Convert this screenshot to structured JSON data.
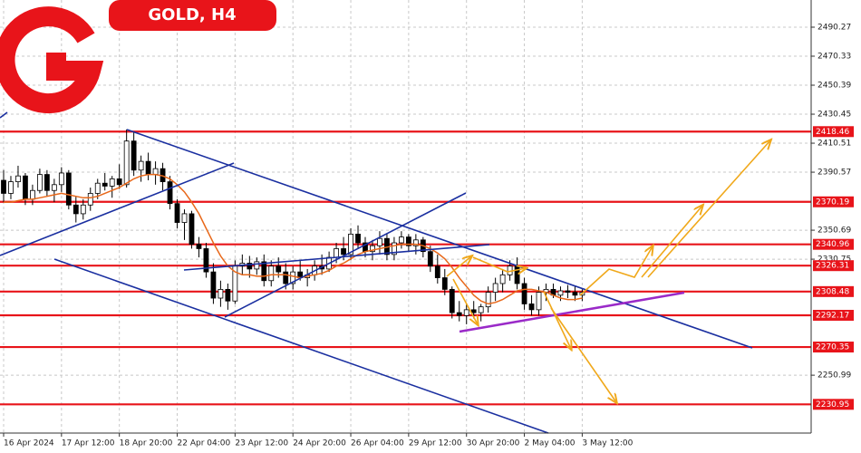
{
  "chart_data": {
    "type": "candlestick",
    "title": "GOLD, H4",
    "categories": [
      "16 Apr 2024",
      null,
      null,
      null,
      null,
      null,
      null,
      null,
      "17 Apr 12:00",
      null,
      null,
      null,
      null,
      null,
      null,
      null,
      "18 Apr 20:00",
      null,
      null,
      null,
      null,
      null,
      null,
      null,
      "22 Apr 04:00",
      null,
      null,
      null,
      null,
      null,
      null,
      null,
      "23 Apr 12:00",
      null,
      null,
      null,
      null,
      null,
      null,
      null,
      "24 Apr 20:00",
      null,
      null,
      null,
      null,
      null,
      null,
      null,
      "26 Apr 04:00",
      null,
      null,
      null,
      null,
      null,
      null,
      null,
      "29 Apr 12:00",
      null,
      null,
      null,
      null,
      null,
      null,
      null,
      "30 Apr 20:00",
      null,
      null,
      null,
      null,
      null,
      null,
      null,
      "2 May 04:00",
      null,
      null,
      null,
      null,
      null,
      null,
      null,
      "3 May 12:00"
    ],
    "open": [
      2385,
      2376,
      2384,
      2388,
      2372,
      2378,
      2389,
      2378,
      2382,
      2390,
      2368,
      2362,
      2368,
      2376,
      2383,
      2381,
      2386,
      2382,
      2412,
      2392,
      2398,
      2389,
      2393,
      2384,
      2369,
      2356,
      2362,
      2341,
      2338,
      2322,
      2304,
      2310,
      2302,
      2326,
      2328,
      2324,
      2329,
      2316,
      2326,
      2322,
      2314,
      2322,
      2318,
      2320,
      2326,
      2324,
      2332,
      2338,
      2334,
      2348,
      2342,
      2336,
      2340,
      2345,
      2334,
      2342,
      2346,
      2340,
      2344,
      2336,
      2326,
      2318,
      2310,
      2294,
      2292,
      2296,
      2294,
      2298,
      2308,
      2314,
      2320,
      2326,
      2314,
      2300,
      2296,
      2308,
      2310,
      2306,
      2309,
      2308,
      2306
    ],
    "high": [
      2392,
      2388,
      2395,
      2390,
      2382,
      2393,
      2392,
      2386,
      2394,
      2392,
      2374,
      2372,
      2380,
      2386,
      2390,
      2388,
      2396,
      2420,
      2418,
      2402,
      2404,
      2398,
      2397,
      2388,
      2372,
      2365,
      2364,
      2346,
      2342,
      2328,
      2316,
      2314,
      2330,
      2334,
      2333,
      2332,
      2334,
      2330,
      2332,
      2328,
      2326,
      2330,
      2324,
      2330,
      2334,
      2336,
      2342,
      2346,
      2352,
      2354,
      2346,
      2344,
      2350,
      2348,
      2346,
      2350,
      2348,
      2348,
      2346,
      2340,
      2334,
      2324,
      2312,
      2302,
      2300,
      2302,
      2300,
      2312,
      2318,
      2324,
      2330,
      2332,
      2318,
      2306,
      2312,
      2314,
      2314,
      2312,
      2313,
      2312,
      2310
    ],
    "low": [
      2370,
      2372,
      2380,
      2368,
      2368,
      2376,
      2374,
      2370,
      2377,
      2365,
      2356,
      2358,
      2364,
      2372,
      2378,
      2373,
      2379,
      2380,
      2388,
      2384,
      2385,
      2382,
      2378,
      2365,
      2352,
      2344,
      2338,
      2332,
      2318,
      2300,
      2298,
      2296,
      2300,
      2320,
      2318,
      2320,
      2312,
      2312,
      2318,
      2310,
      2310,
      2316,
      2312,
      2316,
      2320,
      2322,
      2328,
      2330,
      2330,
      2338,
      2332,
      2330,
      2334,
      2330,
      2330,
      2338,
      2336,
      2334,
      2332,
      2322,
      2314,
      2306,
      2290,
      2288,
      2286,
      2290,
      2288,
      2294,
      2302,
      2308,
      2316,
      2310,
      2296,
      2292,
      2292,
      2302,
      2304,
      2302,
      2304,
      2302,
      2302
    ],
    "close": [
      2376,
      2384,
      2388,
      2372,
      2378,
      2389,
      2378,
      2382,
      2390,
      2368,
      2362,
      2368,
      2376,
      2383,
      2381,
      2386,
      2382,
      2412,
      2392,
      2398,
      2389,
      2393,
      2384,
      2369,
      2356,
      2362,
      2341,
      2338,
      2322,
      2304,
      2310,
      2302,
      2326,
      2328,
      2324,
      2329,
      2316,
      2326,
      2322,
      2314,
      2322,
      2318,
      2320,
      2326,
      2324,
      2332,
      2338,
      2334,
      2348,
      2342,
      2336,
      2340,
      2345,
      2334,
      2342,
      2346,
      2340,
      2344,
      2336,
      2326,
      2318,
      2310,
      2294,
      2292,
      2296,
      2294,
      2298,
      2308,
      2314,
      2320,
      2326,
      2314,
      2300,
      2296,
      2308,
      2310,
      2306,
      2309,
      2308,
      2306,
      2308
    ],
    "ma": {
      "color": "#e8681a",
      "values": [
        2370,
        2370,
        2371,
        2372,
        2372,
        2373,
        2374,
        2375,
        2376,
        2375,
        2374,
        2373,
        2373,
        2374,
        2376,
        2378,
        2380,
        2383,
        2386,
        2388,
        2389,
        2389,
        2388,
        2386,
        2382,
        2377,
        2370,
        2362,
        2352,
        2342,
        2333,
        2326,
        2322,
        2320,
        2320,
        2319,
        2319,
        2320,
        2320,
        2320,
        2319,
        2318,
        2319,
        2320,
        2321,
        2323,
        2326,
        2328,
        2331,
        2334,
        2336,
        2337,
        2338,
        2339,
        2340,
        2341,
        2341,
        2341,
        2340,
        2338,
        2335,
        2331,
        2325,
        2318,
        2312,
        2306,
        2302,
        2300,
        2301,
        2303,
        2306,
        2309,
        2310,
        2310,
        2309,
        2308,
        2306,
        2304,
        2303,
        2303,
        2304
      ]
    },
    "levels": {
      "color": "#e8141a",
      "values": [
        2418.46,
        2370.19,
        2340.96,
        2326.31,
        2308.48,
        2292.17,
        2270.35,
        2230.95
      ]
    },
    "ylim": [
      2211.2,
      2508.96
    ],
    "yticks": [
      2490.27,
      2470.33,
      2450.39,
      2430.45,
      2410.51,
      2390.57,
      2350.69,
      2330.75,
      2250.99
    ],
    "grid": true
  }
}
